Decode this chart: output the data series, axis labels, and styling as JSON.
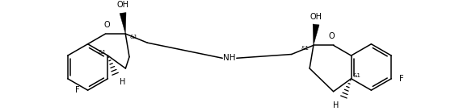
{
  "bg_color": "#ffffff",
  "line_color": "#000000",
  "lw": 1.1,
  "fs": 7.0,
  "fs_s": 5.0,
  "figsize": [
    5.68,
    1.38
  ],
  "dpi": 100,
  "xlim": [
    0.0,
    11.5
  ],
  "ylim": [
    0.0,
    3.2
  ]
}
